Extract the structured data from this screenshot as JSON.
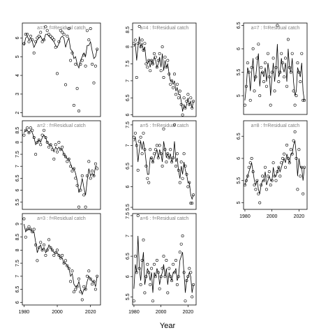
{
  "figure": {
    "xlabel": "Year"
  },
  "chart_data": [
    {
      "type": "scatter",
      "title": "a=1  :  f=Residual catch",
      "xlim": [
        1979,
        2026
      ],
      "ylim": [
        1.8,
        6.8
      ],
      "yticks": [
        2,
        3,
        4,
        5,
        6
      ],
      "show_xaxis": false,
      "x": [
        1980,
        1981,
        1982,
        1983,
        1984,
        1985,
        1986,
        1987,
        1988,
        1989,
        1990,
        1991,
        1992,
        1993,
        1994,
        1995,
        1996,
        1997,
        1998,
        1999,
        2000,
        2001,
        2002,
        2003,
        2004,
        2005,
        2006,
        2007,
        2008,
        2009,
        2010,
        2011,
        2012,
        2013,
        2014,
        2015,
        2016,
        2017,
        2018,
        2019,
        2020,
        2021,
        2022,
        2023,
        2024
      ],
      "y": [
        5.7,
        6.2,
        6.2,
        5.8,
        6.1,
        5.9,
        5.2,
        5.8,
        6.0,
        6.1,
        6.3,
        5.8,
        5.9,
        6.6,
        6.4,
        6.2,
        6.1,
        6.0,
        5.9,
        5.5,
        4.1,
        5.8,
        6.4,
        6.3,
        6.2,
        3.5,
        6.1,
        6.5,
        4.8,
        5.2,
        2.4,
        4.6,
        3.3,
        2.1,
        4.6,
        4.8,
        5.1,
        4.5,
        6.4,
        5.9,
        6.5,
        4.6,
        3.6,
        4.5,
        5.4
      ],
      "fit": [
        5.6,
        6.0,
        6.1,
        5.9,
        6.0,
        5.8,
        5.5,
        5.7,
        5.9,
        6.0,
        6.1,
        5.9,
        5.9,
        6.2,
        6.2,
        6.1,
        6.0,
        5.9,
        5.8,
        5.6,
        5.5,
        5.7,
        6.0,
        6.1,
        6.0,
        5.5,
        5.8,
        6.0,
        5.4,
        5.3,
        4.9,
        5.0,
        4.6,
        4.4,
        4.8,
        5.0,
        5.2,
        5.0,
        5.6,
        5.6,
        5.8,
        5.3,
        4.9,
        5.0,
        5.4
      ]
    },
    {
      "type": "scatter",
      "title": "a=2  :  f=Residual catch",
      "xlim": [
        1979,
        2026
      ],
      "ylim": [
        5.2,
        8.9
      ],
      "yticks": [
        5.5,
        6.0,
        6.5,
        7.0,
        7.5,
        8.0,
        8.5
      ],
      "show_xaxis": false,
      "x": [
        1980,
        1981,
        1982,
        1983,
        1984,
        1985,
        1986,
        1987,
        1988,
        1989,
        1990,
        1991,
        1992,
        1993,
        1994,
        1995,
        1996,
        1997,
        1998,
        1999,
        2000,
        2001,
        2002,
        2003,
        2004,
        2005,
        2006,
        2007,
        2008,
        2009,
        2010,
        2011,
        2012,
        2013,
        2014,
        2015,
        2016,
        2017,
        2018,
        2019,
        2020,
        2021,
        2022,
        2023,
        2024
      ],
      "y": [
        8.3,
        8.5,
        8.6,
        8.4,
        8.6,
        8.5,
        8.2,
        7.5,
        8.0,
        8.1,
        7.9,
        8.3,
        8.5,
        8.2,
        8.0,
        7.8,
        7.9,
        7.7,
        7.3,
        7.9,
        7.6,
        8.0,
        7.7,
        7.8,
        7.5,
        7.4,
        7.2,
        7.3,
        7.0,
        6.8,
        6.9,
        6.5,
        6.2,
        5.3,
        6.0,
        6.6,
        5.8,
        5.3,
        6.6,
        7.2,
        6.5,
        6.8,
        6.6,
        7.1,
        6.9
      ],
      "fit": [
        8.4,
        8.5,
        8.5,
        8.4,
        8.5,
        8.4,
        8.2,
        7.9,
        8.0,
        8.1,
        8.0,
        8.2,
        8.3,
        8.2,
        8.0,
        7.9,
        7.9,
        7.8,
        7.6,
        7.8,
        7.7,
        7.8,
        7.7,
        7.7,
        7.5,
        7.4,
        7.3,
        7.3,
        7.1,
        6.9,
        6.9,
        6.7,
        6.4,
        5.9,
        6.1,
        6.5,
        6.1,
        5.8,
        6.4,
        6.9,
        6.6,
        6.7,
        6.6,
        7.0,
        7.0
      ]
    },
    {
      "type": "scatter",
      "title": "a=3  :  f=Residual catch",
      "xlim": [
        1979,
        2026
      ],
      "ylim": [
        5.9,
        9.4
      ],
      "yticks": [
        6.0,
        6.5,
        7.0,
        7.5,
        8.0,
        8.5,
        9.0
      ],
      "show_xaxis": true,
      "xticks": [
        1980,
        2000,
        2020
      ],
      "x": [
        1980,
        1981,
        1982,
        1983,
        1984,
        1985,
        1986,
        1987,
        1988,
        1989,
        1990,
        1991,
        1992,
        1993,
        1994,
        1995,
        1996,
        1997,
        1998,
        1999,
        2000,
        2001,
        2002,
        2003,
        2004,
        2005,
        2006,
        2007,
        2008,
        2009,
        2010,
        2011,
        2012,
        2013,
        2014,
        2015,
        2016,
        2017,
        2018,
        2019,
        2020,
        2021,
        2022,
        2023,
        2024
      ],
      "y": [
        9.2,
        8.5,
        8.8,
        8.9,
        8.8,
        8.7,
        8.8,
        8.2,
        7.6,
        8.1,
        8.3,
        8.0,
        8.2,
        7.8,
        8.0,
        8.4,
        8.1,
        8.0,
        7.8,
        7.9,
        8.0,
        7.8,
        7.7,
        7.8,
        7.5,
        7.6,
        7.4,
        7.3,
        6.8,
        7.2,
        6.4,
        6.5,
        6.6,
        6.9,
        6.4,
        6.1,
        6.6,
        6.5,
        7.0,
        7.2,
        6.9,
        6.7,
        6.8,
        6.5,
        7.0
      ],
      "fit": [
        9.0,
        8.7,
        8.8,
        8.8,
        8.8,
        8.7,
        8.7,
        8.3,
        7.9,
        8.1,
        8.2,
        8.0,
        8.1,
        7.9,
        8.0,
        8.2,
        8.1,
        8.0,
        7.9,
        7.9,
        7.9,
        7.8,
        7.7,
        7.7,
        7.5,
        7.5,
        7.4,
        7.3,
        7.0,
        7.1,
        6.7,
        6.6,
        6.6,
        6.8,
        6.5,
        6.3,
        6.5,
        6.5,
        6.8,
        7.0,
        6.9,
        6.8,
        6.8,
        6.6,
        7.0
      ]
    },
    {
      "type": "scatter",
      "title": "a=4  :  f=Residual catch",
      "xlim": [
        1979,
        2026
      ],
      "ylim": [
        5.95,
        8.7
      ],
      "yticks": [
        6.0,
        6.5,
        7.0,
        7.5,
        8.0,
        8.5
      ],
      "show_xaxis": false,
      "x": [
        1980,
        1981,
        1982,
        1983,
        1984,
        1985,
        1986,
        1987,
        1988,
        1989,
        1990,
        1991,
        1992,
        1993,
        1994,
        1995,
        1996,
        1997,
        1998,
        1999,
        2000,
        2001,
        2002,
        2003,
        2004,
        2005,
        2006,
        2007,
        2008,
        2009,
        2010,
        2011,
        2012,
        2013,
        2014,
        2015,
        2016,
        2017,
        2018,
        2019,
        2020,
        2021,
        2022,
        2023,
        2024
      ],
      "y": [
        8.1,
        8.2,
        7.1,
        8.1,
        8.6,
        8.0,
        8.2,
        7.9,
        8.1,
        7.5,
        7.4,
        7.6,
        7.3,
        7.6,
        7.5,
        7.8,
        7.7,
        7.4,
        7.6,
        7.8,
        7.3,
        8.0,
        7.1,
        7.7,
        7.4,
        7.6,
        7.2,
        6.9,
        7.0,
        6.8,
        7.2,
        6.6,
        6.9,
        6.5,
        6.7,
        6.3,
        6.0,
        6.5,
        6.2,
        6.4,
        6.6,
        6.3,
        6.5,
        6.2,
        6.4
      ],
      "fit": [
        8.0,
        8.1,
        7.6,
        8.0,
        8.3,
        8.0,
        8.1,
        7.9,
        8.0,
        7.6,
        7.5,
        7.6,
        7.4,
        7.6,
        7.5,
        7.7,
        7.6,
        7.4,
        7.5,
        7.7,
        7.4,
        7.8,
        7.3,
        7.6,
        7.4,
        7.5,
        7.2,
        7.0,
        7.0,
        6.9,
        7.0,
        6.7,
        6.8,
        6.6,
        6.6,
        6.4,
        6.1,
        6.3,
        6.2,
        6.3,
        6.5,
        6.3,
        6.4,
        6.2,
        6.4
      ]
    },
    {
      "type": "scatter",
      "title": "a=5  :  f=Residual catch",
      "xlim": [
        1979,
        2026
      ],
      "ylim": [
        5.45,
        7.6
      ],
      "yticks": [
        5.5,
        6.0,
        6.5,
        7.0,
        7.5
      ],
      "show_xaxis": false,
      "x": [
        1980,
        1981,
        1982,
        1983,
        1984,
        1985,
        1986,
        1987,
        1988,
        1989,
        1990,
        1991,
        1992,
        1993,
        1994,
        1995,
        1996,
        1997,
        1998,
        1999,
        2000,
        2001,
        2002,
        2003,
        2004,
        2005,
        2006,
        2007,
        2008,
        2009,
        2010,
        2011,
        2012,
        2013,
        2014,
        2015,
        2016,
        2017,
        2018,
        2019,
        2020,
        2021,
        2022,
        2023,
        2024
      ],
      "y": [
        7.2,
        7.3,
        7.0,
        6.4,
        7.1,
        7.2,
        6.8,
        7.3,
        6.9,
        6.5,
        6.2,
        6.1,
        6.9,
        6.7,
        6.6,
        6.8,
        6.9,
        7.0,
        6.7,
        7.0,
        6.8,
        6.5,
        7.4,
        6.9,
        6.6,
        6.8,
        6.7,
        6.9,
        6.6,
        6.7,
        7.5,
        6.5,
        6.8,
        6.4,
        6.1,
        6.6,
        6.2,
        6.8,
        6.5,
        6.3,
        6.0,
        6.1,
        5.6,
        5.6,
        5.8
      ],
      "fit": [
        7.1,
        7.2,
        7.0,
        6.6,
        6.9,
        7.1,
        6.9,
        7.1,
        6.9,
        6.6,
        6.3,
        6.3,
        6.7,
        6.7,
        6.6,
        6.7,
        6.8,
        6.9,
        6.7,
        6.9,
        6.8,
        6.6,
        7.1,
        6.9,
        6.7,
        6.8,
        6.7,
        6.8,
        6.6,
        6.7,
        7.1,
        6.6,
        6.7,
        6.4,
        6.2,
        6.5,
        6.3,
        6.6,
        6.4,
        6.3,
        6.1,
        6.1,
        5.8,
        5.7,
        5.8
      ]
    },
    {
      "type": "scatter",
      "title": "a=6  :  f=Residual catch",
      "xlim": [
        1979,
        2026
      ],
      "ylim": [
        5.3,
        7.55
      ],
      "yticks": [
        5.5,
        6.0,
        6.5,
        7.0,
        7.5
      ],
      "show_xaxis": true,
      "xticks": [
        1980,
        2000,
        2020
      ],
      "x": [
        1980,
        1981,
        1982,
        1983,
        1984,
        1985,
        1986,
        1987,
        1988,
        1989,
        1990,
        1991,
        1992,
        1993,
        1994,
        1995,
        1996,
        1997,
        1998,
        1999,
        2000,
        2001,
        2002,
        2003,
        2004,
        2005,
        2006,
        2007,
        2008,
        2009,
        2010,
        2011,
        2012,
        2013,
        2014,
        2015,
        2016,
        2017,
        2018,
        2019,
        2020,
        2021,
        2022,
        2023,
        2024
      ],
      "y": [
        5.4,
        6.5,
        6.1,
        7.5,
        6.2,
        5.8,
        6.4,
        6.9,
        5.6,
        6.0,
        6.3,
        6.1,
        5.8,
        6.2,
        5.4,
        6.3,
        6.0,
        6.4,
        6.1,
        5.7,
        6.0,
        6.2,
        6.5,
        6.0,
        6.4,
        5.6,
        6.2,
        6.0,
        5.9,
        6.3,
        6.1,
        6.4,
        5.8,
        6.0,
        6.6,
        6.8,
        7.0,
        6.1,
        5.4,
        5.9,
        6.0,
        6.2,
        6.1,
        5.5,
        5.8
      ],
      "fit": [
        5.7,
        6.3,
        6.1,
        7.0,
        6.2,
        5.9,
        6.3,
        6.6,
        5.8,
        6.0,
        6.2,
        6.1,
        5.9,
        6.1,
        5.6,
        6.1,
        6.0,
        6.2,
        6.1,
        5.8,
        6.0,
        6.1,
        6.3,
        6.0,
        6.2,
        5.8,
        6.1,
        6.0,
        5.9,
        6.1,
        6.1,
        6.2,
        5.9,
        6.0,
        6.4,
        6.5,
        6.6,
        6.1,
        5.6,
        5.9,
        6.0,
        6.1,
        6.0,
        5.6,
        5.8
      ]
    },
    {
      "type": "scatter",
      "title": "a=7  :  f=Residual catch",
      "xlim": [
        1979,
        2026
      ],
      "ylim": [
        4.6,
        6.55
      ],
      "yticks": [
        5.0,
        5.5,
        6.0,
        6.5
      ],
      "show_xaxis": false,
      "x": [
        1980,
        1981,
        1982,
        1983,
        1984,
        1985,
        1986,
        1987,
        1988,
        1989,
        1990,
        1991,
        1992,
        1993,
        1994,
        1995,
        1996,
        1997,
        1998,
        1999,
        2000,
        2001,
        2002,
        2003,
        2004,
        2005,
        2006,
        2007,
        2008,
        2009,
        2010,
        2011,
        2012,
        2013,
        2014,
        2015,
        2016,
        2017,
        2018,
        2019,
        2020,
        2021,
        2022,
        2023,
        2024
      ],
      "y": [
        4.8,
        5.2,
        5.7,
        5.5,
        4.9,
        5.6,
        6.0,
        5.1,
        5.4,
        5.8,
        6.1,
        5.0,
        5.6,
        5.5,
        5.3,
        5.7,
        5.2,
        5.9,
        5.4,
        4.8,
        5.5,
        5.8,
        5.1,
        5.6,
        6.5,
        5.3,
        5.5,
        5.9,
        5.7,
        5.4,
        5.8,
        5.2,
        6.2,
        5.6,
        5.5,
        5.9,
        5.1,
        4.8,
        5.0,
        5.7,
        5.5,
        5.3,
        5.9,
        4.9,
        4.9
      ],
      "fit": [
        4.9,
        5.2,
        5.6,
        5.5,
        5.1,
        5.5,
        5.8,
        5.3,
        5.4,
        5.7,
        5.9,
        5.2,
        5.5,
        5.5,
        5.4,
        5.6,
        5.3,
        5.7,
        5.5,
        5.0,
        5.4,
        5.7,
        5.3,
        5.6,
        6.1,
        5.4,
        5.5,
        5.8,
        5.6,
        5.5,
        5.7,
        5.3,
        6.0,
        5.6,
        5.5,
        5.8,
        5.3,
        5.0,
        5.1,
        5.6,
        5.5,
        5.4,
        5.7,
        5.1,
        4.9
      ]
    },
    {
      "type": "scatter",
      "title": "a=8  :  f=Residual catch",
      "xlim": [
        1979,
        2026
      ],
      "ylim": [
        4.85,
        6.85
      ],
      "yticks": [
        5.0,
        5.5,
        6.0,
        6.5
      ],
      "show_xaxis": true,
      "xticks": [
        1980,
        2000,
        2020
      ],
      "x": [
        1980,
        1981,
        1982,
        1983,
        1984,
        1985,
        1986,
        1987,
        1988,
        1989,
        1990,
        1991,
        1992,
        1993,
        1994,
        1995,
        1996,
        1997,
        1998,
        1999,
        2000,
        2001,
        2002,
        2003,
        2004,
        2005,
        2006,
        2007,
        2008,
        2009,
        2010,
        2011,
        2012,
        2013,
        2014,
        2015,
        2016,
        2017,
        2018,
        2019,
        2020,
        2021,
        2022,
        2023,
        2024
      ],
      "y": [
        5.4,
        5.5,
        5.6,
        5.8,
        5.9,
        6.0,
        5.7,
        5.4,
        5.3,
        5.5,
        5.2,
        5.0,
        5.4,
        5.6,
        5.5,
        5.8,
        5.3,
        5.6,
        5.7,
        5.4,
        5.5,
        5.9,
        5.6,
        5.5,
        5.7,
        5.8,
        5.6,
        5.9,
        6.0,
        6.1,
        5.8,
        6.3,
        6.0,
        5.9,
        6.2,
        6.1,
        6.4,
        6.6,
        6.0,
        5.3,
        6.2,
        5.6,
        5.8,
        5.2,
        5.8
      ],
      "fit": [
        5.4,
        5.5,
        5.6,
        5.7,
        5.8,
        5.9,
        5.7,
        5.5,
        5.4,
        5.5,
        5.3,
        5.2,
        5.4,
        5.5,
        5.5,
        5.7,
        5.4,
        5.5,
        5.6,
        5.5,
        5.5,
        5.8,
        5.6,
        5.6,
        5.7,
        5.8,
        5.7,
        5.8,
        5.9,
        6.0,
        5.9,
        6.1,
        6.0,
        5.9,
        6.1,
        6.1,
        6.3,
        6.4,
        6.1,
        5.6,
        6.0,
        5.8,
        5.8,
        5.5,
        5.8
      ]
    }
  ]
}
